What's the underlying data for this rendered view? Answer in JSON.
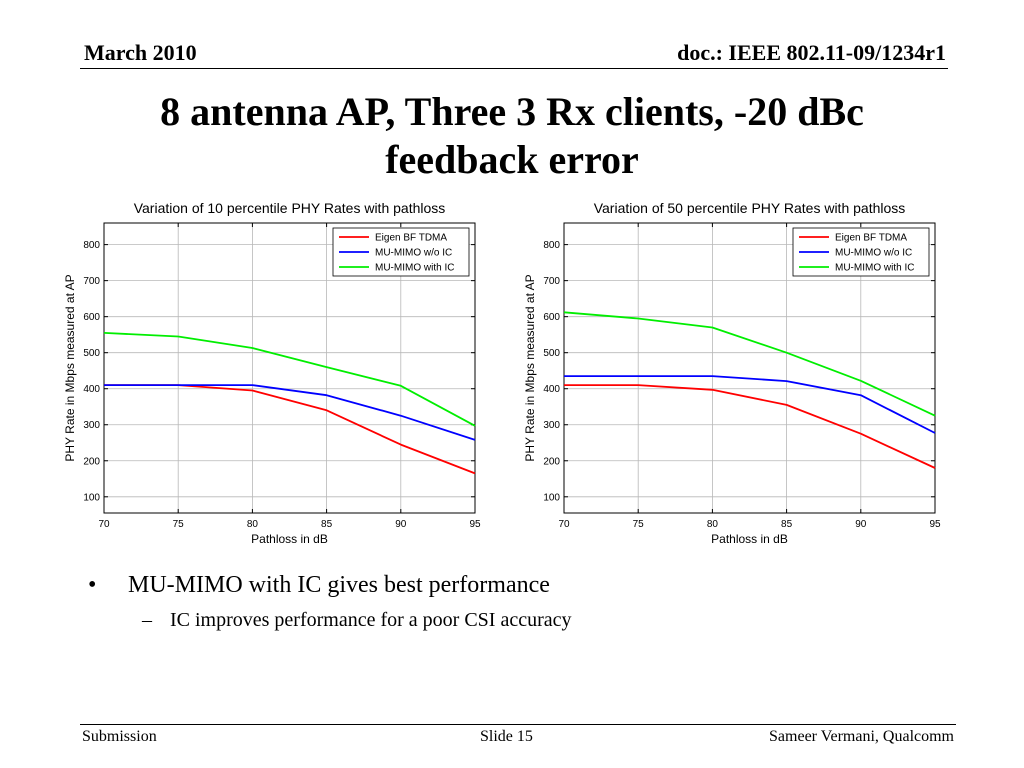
{
  "header": {
    "date": "March 2010",
    "doc_id": "doc.: IEEE 802.11-09/1234r1"
  },
  "title": {
    "line1": "8 antenna AP, Three 3 Rx clients, -20 dBc",
    "line2": "feedback error"
  },
  "colors": {
    "eigen": "#ff0000",
    "mumimo_wo_ic": "#0000ff",
    "mumimo_ic": "#00ee00"
  },
  "chart_data": [
    {
      "type": "line",
      "title": "Variation of 10 percentile PHY Rates with pathloss",
      "xlabel": "Pathloss in dB",
      "ylabel": "PHY Rate in Mbps measured at AP",
      "x": [
        70,
        75,
        80,
        85,
        90,
        95
      ],
      "xlim": [
        70,
        95
      ],
      "ylim": [
        55,
        860
      ],
      "xticks": [
        70,
        75,
        80,
        85,
        90,
        95
      ],
      "yticks": [
        100,
        200,
        300,
        400,
        500,
        600,
        700,
        800
      ],
      "grid": true,
      "legend_position": "top-right",
      "series": [
        {
          "name": "Eigen BF TDMA",
          "color": "#ff0000",
          "values": [
            410,
            410,
            395,
            340,
            245,
            165
          ]
        },
        {
          "name": "MU-MIMO w/o IC",
          "color": "#0000ff",
          "values": [
            410,
            410,
            410,
            382,
            325,
            258
          ]
        },
        {
          "name": "MU-MIMO with IC",
          "color": "#00ee00",
          "values": [
            555,
            545,
            513,
            460,
            408,
            297
          ]
        }
      ]
    },
    {
      "type": "line",
      "title": "Variation of 50 percentile PHY Rates with pathloss",
      "xlabel": "Pathloss in dB",
      "ylabel": "PHY Rate in Mbps measured at AP",
      "x": [
        70,
        75,
        80,
        85,
        90,
        95
      ],
      "xlim": [
        70,
        95
      ],
      "ylim": [
        55,
        860
      ],
      "xticks": [
        70,
        75,
        80,
        85,
        90,
        95
      ],
      "yticks": [
        100,
        200,
        300,
        400,
        500,
        600,
        700,
        800
      ],
      "grid": true,
      "legend_position": "top-right",
      "series": [
        {
          "name": "Eigen BF TDMA",
          "color": "#ff0000",
          "values": [
            410,
            410,
            397,
            355,
            275,
            180
          ]
        },
        {
          "name": "MU-MIMO w/o IC",
          "color": "#0000ff",
          "values": [
            435,
            435,
            435,
            421,
            382,
            277
          ]
        },
        {
          "name": "MU-MIMO with IC",
          "color": "#00ee00",
          "values": [
            612,
            595,
            570,
            500,
            422,
            325
          ]
        }
      ]
    }
  ],
  "bullets": {
    "main": "MU-MIMO with IC gives best performance",
    "sub": "IC improves performance for a poor CSI accuracy",
    "bullet_glyph": "•",
    "dash_glyph": "–"
  },
  "footer": {
    "left": "Submission",
    "center": "Slide 15",
    "right": "Sameer Vermani, Qualcomm"
  }
}
